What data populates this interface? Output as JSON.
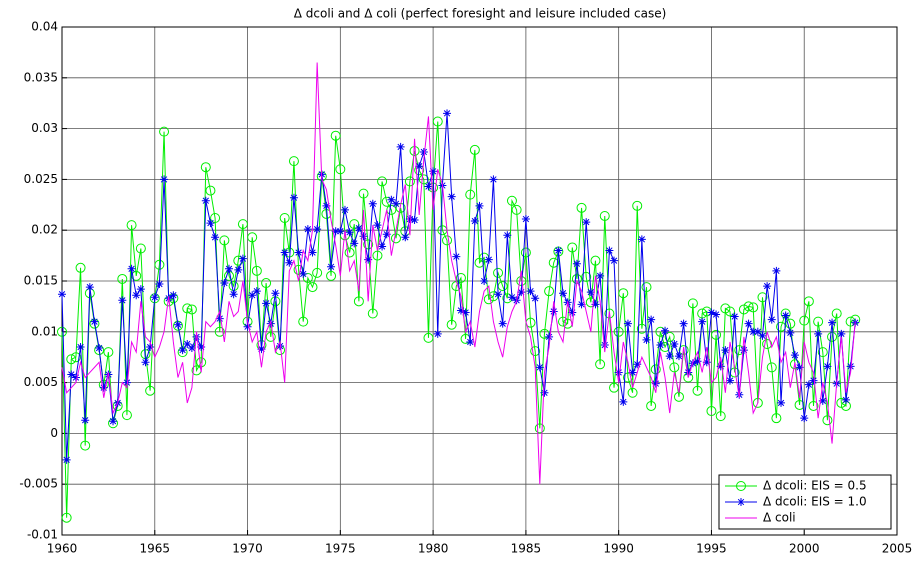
{
  "chart_data": {
    "type": "line",
    "title": "Δ dcoli and Δ coli (perfect foresight and leisure included case)",
    "x": [
      1960,
      1960.25,
      1960.5,
      1960.75,
      1961,
      1961.25,
      1961.5,
      1961.75,
      1962,
      1962.25,
      1962.5,
      1962.75,
      1963,
      1963.25,
      1963.5,
      1963.75,
      1964,
      1964.25,
      1964.5,
      1964.75,
      1965,
      1965.25,
      1965.5,
      1965.75,
      1966,
      1966.25,
      1966.5,
      1966.75,
      1967,
      1967.25,
      1967.5,
      1967.75,
      1968,
      1968.25,
      1968.5,
      1968.75,
      1969,
      1969.25,
      1969.5,
      1969.75,
      1970,
      1970.25,
      1970.5,
      1970.75,
      1971,
      1971.25,
      1971.5,
      1971.75,
      1972,
      1972.25,
      1972.5,
      1972.75,
      1973,
      1973.25,
      1973.5,
      1973.75,
      1974,
      1974.25,
      1974.5,
      1974.75,
      1975,
      1975.25,
      1975.5,
      1975.75,
      1976,
      1976.25,
      1976.5,
      1976.75,
      1977,
      1977.25,
      1977.5,
      1977.75,
      1978,
      1978.25,
      1978.5,
      1978.75,
      1979,
      1979.25,
      1979.5,
      1979.75,
      1980,
      1980.25,
      1980.5,
      1980.75,
      1981,
      1981.25,
      1981.5,
      1981.75,
      1982,
      1982.25,
      1982.5,
      1982.75,
      1983,
      1983.25,
      1983.5,
      1983.75,
      1984,
      1984.25,
      1984.5,
      1984.75,
      1985,
      1985.25,
      1985.5,
      1985.75,
      1986,
      1986.25,
      1986.5,
      1986.75,
      1987,
      1987.25,
      1987.5,
      1987.75,
      1988,
      1988.25,
      1988.5,
      1988.75,
      1989,
      1989.25,
      1989.5,
      1989.75,
      1990,
      1990.25,
      1990.5,
      1990.75,
      1991,
      1991.25,
      1991.5,
      1991.75,
      1992,
      1992.25,
      1992.5,
      1992.75,
      1993,
      1993.25,
      1993.5,
      1993.75,
      1994,
      1994.25,
      1994.5,
      1994.75,
      1995,
      1995.25,
      1995.5,
      1995.75,
      1996,
      1996.25,
      1996.5,
      1996.75,
      1997,
      1997.25,
      1997.5,
      1997.75,
      1998,
      1998.25,
      1998.5,
      1998.75,
      1999,
      1999.25,
      1999.5,
      1999.75,
      2000,
      2000.25,
      2000.5,
      2000.75,
      2001,
      2001.25,
      2001.5,
      2001.75,
      2002,
      2002.25,
      2002.5,
      2002.75
    ],
    "series": [
      {
        "name": "Δ dcoli: EIS = 0.5",
        "color": "#00ee00",
        "marker": "circle",
        "values": [
          0.01,
          -0.0083,
          0.0073,
          0.0075,
          0.0163,
          -0.0012,
          0.0138,
          0.0108,
          0.0082,
          0.0048,
          0.008,
          0.001,
          0.0027,
          0.0152,
          0.0018,
          0.0205,
          0.0155,
          0.0182,
          0.0078,
          0.0042,
          0.0133,
          0.0166,
          0.0297,
          0.013,
          0.0133,
          0.0106,
          0.008,
          0.0123,
          0.0122,
          0.0062,
          0.007,
          0.0262,
          0.0239,
          0.0212,
          0.01,
          0.019,
          0.0155,
          0.0145,
          0.017,
          0.0206,
          0.011,
          0.0193,
          0.016,
          0.0087,
          0.0148,
          0.0095,
          0.013,
          0.0082,
          0.0212,
          0.0178,
          0.0268,
          0.0161,
          0.011,
          0.0153,
          0.0144,
          0.0158,
          0.0253,
          0.0216,
          0.0155,
          0.0293,
          0.026,
          0.0195,
          0.0178,
          0.0206,
          0.013,
          0.0236,
          0.0186,
          0.0118,
          0.0175,
          0.0248,
          0.0228,
          0.022,
          0.0192,
          0.0222,
          0.0199,
          0.0248,
          0.0278,
          0.0259,
          0.025,
          0.0094,
          0.0242,
          0.0307,
          0.02,
          0.019,
          0.0107,
          0.0145,
          0.0153,
          0.0093,
          0.0235,
          0.0279,
          0.0168,
          0.0173,
          0.0132,
          0.0135,
          0.0158,
          0.0145,
          0.0133,
          0.0229,
          0.022,
          0.015,
          0.0178,
          0.0109,
          0.0081,
          0.0005,
          0.0098,
          0.014,
          0.0168,
          0.0179,
          0.011,
          0.0108,
          0.0183,
          0.0152,
          0.0222,
          0.0154,
          0.0129,
          0.017,
          0.0068,
          0.0214,
          0.0118,
          0.0045,
          0.01,
          0.0138,
          0.0055,
          0.004,
          0.0224,
          0.0103,
          0.0144,
          0.0027,
          0.0063,
          0.01,
          0.0085,
          0.0095,
          0.0065,
          0.0036,
          0.0082,
          0.0055,
          0.0128,
          0.0042,
          0.0118,
          0.012,
          0.0022,
          0.0097,
          0.0017,
          0.0123,
          0.012,
          0.006,
          0.0082,
          0.0122,
          0.0125,
          0.0124,
          0.003,
          0.0134,
          0.0088,
          0.0065,
          0.0015,
          0.0105,
          0.0118,
          0.0108,
          0.0068,
          0.0028,
          0.0111,
          0.013,
          0.0027,
          0.011,
          0.008,
          0.0013,
          0.0095,
          0.0118,
          0.003,
          0.0027,
          0.011,
          0.0112
        ]
      },
      {
        "name": "Δ dcoli: EIS = 1.0",
        "color": "#0000ee",
        "marker": "star",
        "values": [
          0.0137,
          -0.0026,
          0.0058,
          0.0055,
          0.0085,
          0.0013,
          0.0144,
          0.011,
          0.0084,
          0.0045,
          0.0058,
          0.0012,
          0.003,
          0.0131,
          0.005,
          0.0162,
          0.0136,
          0.0142,
          0.007,
          0.0085,
          0.0134,
          0.0147,
          0.025,
          0.0133,
          0.0136,
          0.0107,
          0.0082,
          0.0088,
          0.0084,
          0.0095,
          0.0085,
          0.0229,
          0.0207,
          0.0193,
          0.0113,
          0.0148,
          0.0162,
          0.0137,
          0.0161,
          0.0172,
          0.0105,
          0.0136,
          0.014,
          0.0083,
          0.0128,
          0.0108,
          0.0138,
          0.0086,
          0.0178,
          0.0168,
          0.0232,
          0.0178,
          0.0157,
          0.0201,
          0.0178,
          0.0201,
          0.0255,
          0.0224,
          0.0164,
          0.0199,
          0.0199,
          0.022,
          0.0198,
          0.0187,
          0.0202,
          0.0194,
          0.0171,
          0.0226,
          0.0205,
          0.0184,
          0.0196,
          0.023,
          0.0226,
          0.0282,
          0.0193,
          0.0211,
          0.021,
          0.0263,
          0.0277,
          0.0243,
          0.0258,
          0.0098,
          0.0244,
          0.0315,
          0.0233,
          0.0174,
          0.0121,
          0.0119,
          0.009,
          0.0209,
          0.0224,
          0.015,
          0.0171,
          0.025,
          0.0137,
          0.0108,
          0.0195,
          0.0134,
          0.0131,
          0.0139,
          0.0211,
          0.014,
          0.0133,
          0.0065,
          0.004,
          0.0095,
          0.012,
          0.018,
          0.0138,
          0.0129,
          0.0119,
          0.0167,
          0.0127,
          0.0208,
          0.0139,
          0.0127,
          0.0155,
          0.0087,
          0.018,
          0.017,
          0.006,
          0.0031,
          0.0108,
          0.006,
          0.0068,
          0.0191,
          0.0092,
          0.0112,
          0.0049,
          0.0087,
          0.0101,
          0.0076,
          0.0088,
          0.0076,
          0.0108,
          0.006,
          0.0069,
          0.0071,
          0.011,
          0.007,
          0.0119,
          0.0117,
          0.0066,
          0.0082,
          0.0052,
          0.0115,
          0.0038,
          0.0082,
          0.0108,
          0.01,
          0.01,
          0.0096,
          0.0145,
          0.0112,
          0.016,
          0.003,
          0.0116,
          0.0099,
          0.0077,
          0.0065,
          0.0015,
          0.0048,
          0.0052,
          0.0098,
          0.0032,
          0.0066,
          0.0109,
          0.0049,
          0.0098,
          0.0033,
          0.0066,
          0.0109
        ]
      },
      {
        "name": "Δ coli",
        "color": "#ee00ee",
        "marker": "none",
        "values": [
          0.0065,
          0.004,
          0.0045,
          0.005,
          0.007,
          0.0055,
          0.006,
          0.0065,
          0.007,
          0.0035,
          0.006,
          0.002,
          0.003,
          0.005,
          0.0045,
          0.009,
          0.008,
          0.013,
          0.0095,
          0.009,
          0.0075,
          0.0085,
          0.01,
          0.0135,
          0.009,
          0.0055,
          0.007,
          0.003,
          0.0045,
          0.01,
          0.006,
          0.011,
          0.0105,
          0.011,
          0.012,
          0.009,
          0.013,
          0.0115,
          0.012,
          0.015,
          0.011,
          0.009,
          0.01,
          0.0065,
          0.01,
          0.011,
          0.008,
          0.009,
          0.005,
          0.016,
          0.017,
          0.015,
          0.018,
          0.017,
          0.02,
          0.0365,
          0.025,
          0.024,
          0.021,
          0.0185,
          0.0155,
          0.02,
          0.016,
          0.017,
          0.014,
          0.022,
          0.013,
          0.0205,
          0.018,
          0.02,
          0.022,
          0.0175,
          0.02,
          0.0225,
          0.0245,
          0.0195,
          0.029,
          0.0215,
          0.027,
          0.0312,
          0.022,
          0.026,
          0.0245,
          0.02,
          0.017,
          0.015,
          0.0135,
          0.01,
          0.011,
          0.0085,
          0.012,
          0.014,
          0.0145,
          0.011,
          0.009,
          0.0075,
          0.0105,
          0.012,
          0.013,
          0.016,
          0.011,
          0.0095,
          0.0065,
          -0.005,
          0.006,
          0.0085,
          0.013,
          0.01,
          0.009,
          0.013,
          0.0105,
          0.015,
          0.014,
          0.012,
          0.01,
          0.0155,
          0.013,
          0.008,
          0.012,
          0.008,
          0.005,
          0.009,
          0.007,
          0.0045,
          0.006,
          0.0075,
          0.0065,
          0.0055,
          0.004,
          0.008,
          0.0055,
          0.002,
          0.006,
          0.004,
          0.0085,
          0.0055,
          0.007,
          0.008,
          0.006,
          0.0085,
          0.005,
          0.0055,
          0.0075,
          0.004,
          0.009,
          0.0065,
          0.0035,
          0.0095,
          0.006,
          0.002,
          0.003,
          0.0075,
          0.01,
          0.0085,
          0.0095,
          0.007,
          0.008,
          0.0045,
          0.007,
          0.0035,
          0.009,
          0.007,
          0.006,
          0.0015,
          0.005,
          0.003,
          -0.001,
          0.005,
          0.0095,
          0.004,
          0.006,
          0.011
        ]
      }
    ],
    "xlim": [
      1960,
      2005
    ],
    "xticks": [
      1960,
      1965,
      1970,
      1975,
      1980,
      1985,
      1990,
      1995,
      2000,
      2005
    ],
    "ylim": [
      -0.01,
      0.04
    ],
    "yticks": [
      -0.01,
      -0.005,
      0,
      0.005,
      0.01,
      0.015,
      0.02,
      0.025,
      0.03,
      0.035,
      0.04
    ],
    "grid": true,
    "legend": "lower-right"
  }
}
